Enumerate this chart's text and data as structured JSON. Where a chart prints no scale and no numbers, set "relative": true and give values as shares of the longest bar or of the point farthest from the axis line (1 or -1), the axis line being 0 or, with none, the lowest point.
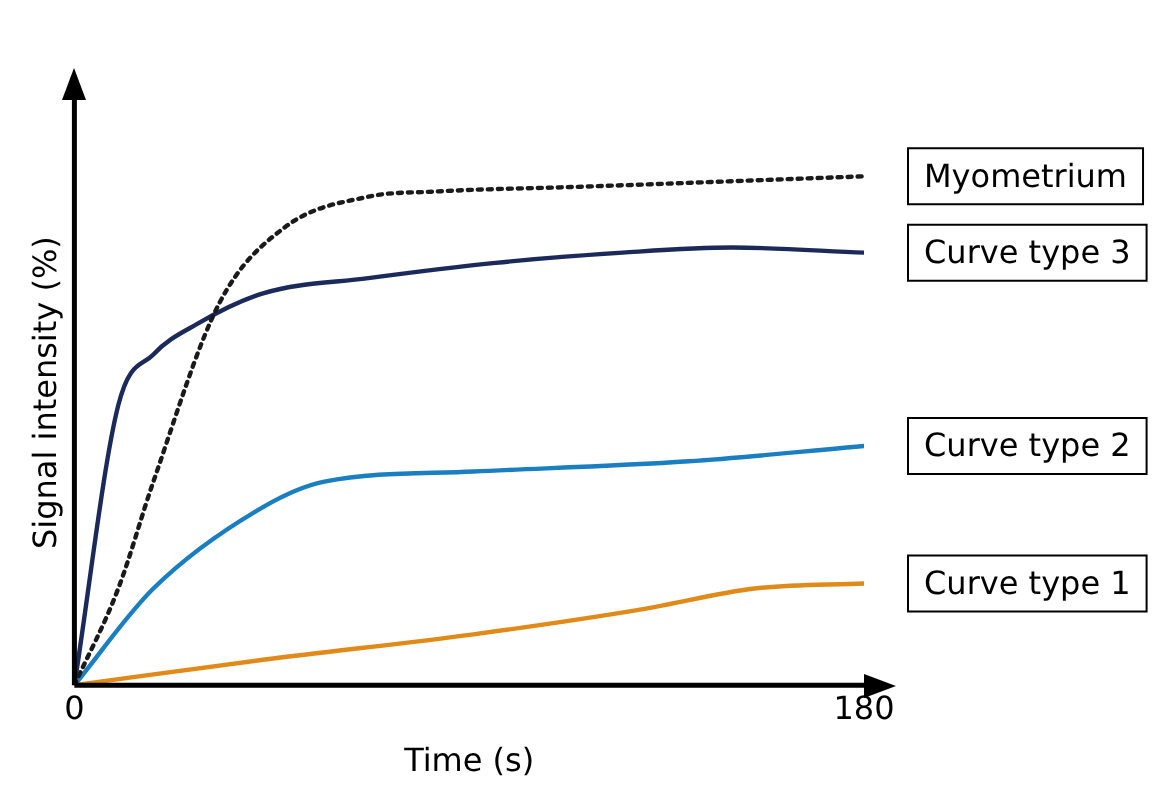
{
  "chart_data": {
    "type": "line",
    "relative": true,
    "xlabel": "Time (s)",
    "ylabel": "Signal intensity (%)",
    "xlim": [
      0,
      180
    ],
    "xticks": [
      0,
      180
    ],
    "grid": false,
    "legend": false,
    "tick_labels": "x",
    "marker": "none",
    "series": [
      {
        "name": "Myometrium",
        "color": "#1a1a1a",
        "line_style": "dotted",
        "x": [
          0,
          10,
          18,
          33,
          48,
          67,
          82,
          117,
          180
        ],
        "values": [
          0,
          0.19,
          0.4,
          0.75,
          0.9,
          0.96,
          0.97,
          0.98,
          1
        ]
      },
      {
        "name": "Curve type 3",
        "color": "#1b2a5a",
        "line_style": "solid",
        "x": [
          0,
          10,
          18,
          28,
          43,
          67,
          96,
          125,
          150,
          180
        ],
        "values": [
          0,
          0.55,
          0.65,
          0.71,
          0.77,
          0.8,
          0.83,
          0.85,
          0.86,
          0.85
        ]
      },
      {
        "name": "Curve type 2",
        "color": "#1a7fc1",
        "line_style": "solid",
        "x": [
          0,
          18,
          43,
          57,
          91,
          140,
          180
        ],
        "values": [
          0,
          0.19,
          0.35,
          0.4,
          0.42,
          0.44,
          0.47
        ]
      },
      {
        "name": "Curve type 1",
        "color": "#e08a1a",
        "line_style": "solid",
        "x": [
          0,
          43,
          91,
          130,
          155,
          180
        ],
        "values": [
          0,
          0.05,
          0.1,
          0.15,
          0.19,
          0.2
        ]
      }
    ]
  }
}
